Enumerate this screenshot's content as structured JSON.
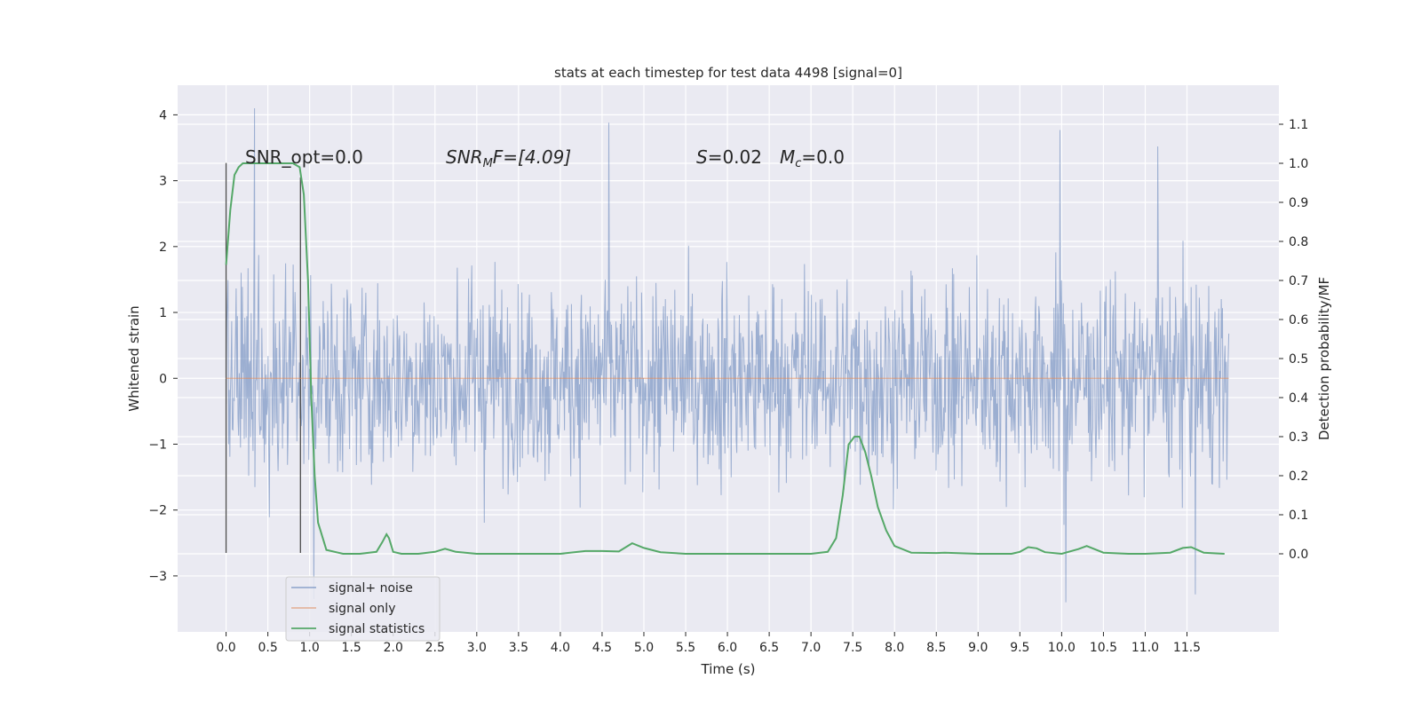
{
  "chart_data": {
    "type": "line",
    "title": "stats at each timestep for test data 4498 [signal=0]",
    "xlabel": "Time (s)",
    "ylabel": "Whitened strain",
    "ylabel_right": "Detection probability/MF",
    "xlim": [
      -0.58,
      12.6
    ],
    "ylim": [
      -3.85,
      4.45
    ],
    "ylim_right": [
      -0.2,
      1.2
    ],
    "x_ticks": [
      "0.0",
      "0.5",
      "1.0",
      "1.5",
      "2.0",
      "2.5",
      "3.0",
      "3.5",
      "4.0",
      "4.5",
      "5.0",
      "5.5",
      "6.0",
      "6.5",
      "7.0",
      "7.5",
      "8.0",
      "8.5",
      "9.0",
      "9.5",
      "10.0",
      "10.5",
      "11.0",
      "11.5"
    ],
    "y_ticks": [
      "4",
      "3",
      "2",
      "1",
      "0",
      "−1",
      "−2",
      "−3"
    ],
    "y_ticks_right": [
      "1.1",
      "1.0",
      "0.9",
      "0.8",
      "0.7",
      "0.6",
      "0.5",
      "0.4",
      "0.3",
      "0.2",
      "0.1",
      "0.0"
    ],
    "grid": true,
    "legend_position": "lower-left",
    "annotations": {
      "snr_opt": "SNR_opt=0.0",
      "snr_mf_label": "SNR",
      "snr_mf_sub": "M",
      "snr_mf_tail": "F=[4.09]",
      "s_label": "S",
      "s_value": "=0.02",
      "mc_label": "M",
      "mc_sub": "c",
      "mc_value": "=0.0"
    },
    "vertical_markers": [
      {
        "x": 0.0,
        "y0": -2.65,
        "y1": 3.27
      },
      {
        "x": 0.89,
        "y0": -2.65,
        "y1": 3.05
      }
    ],
    "series": [
      {
        "name": "signal+ noise",
        "color": "#4c72b0",
        "noise_x_range": [
          0.0,
          12.0
        ],
        "approx_envelope": [
          -3.4,
          4.1
        ],
        "notable_peaks": [
          [
            0.34,
            4.1
          ],
          [
            4.58,
            3.88
          ],
          [
            9.98,
            3.77
          ],
          [
            11.15,
            3.52
          ],
          [
            1.05,
            -3.35
          ],
          [
            10.05,
            -3.4
          ],
          [
            11.6,
            -3.28
          ]
        ]
      },
      {
        "name": "signal only",
        "color": "#dd8452",
        "x": [
          0.0,
          12.0
        ],
        "y": [
          0.0,
          0.0
        ]
      },
      {
        "name": "signal statistics",
        "color": "#55a868",
        "axis": "right",
        "x": [
          0.0,
          0.05,
          0.1,
          0.15,
          0.2,
          0.3,
          0.5,
          0.7,
          0.8,
          0.88,
          0.93,
          0.98,
          1.02,
          1.06,
          1.1,
          1.2,
          1.4,
          1.6,
          1.8,
          1.87,
          1.92,
          1.95,
          2.0,
          2.1,
          2.3,
          2.5,
          2.62,
          2.75,
          3.0,
          3.5,
          4.0,
          4.3,
          4.5,
          4.7,
          4.86,
          5.0,
          5.2,
          5.5,
          6.0,
          6.5,
          7.0,
          7.2,
          7.3,
          7.38,
          7.45,
          7.52,
          7.58,
          7.65,
          7.72,
          7.8,
          7.9,
          8.0,
          8.2,
          8.5,
          8.6,
          9.0,
          9.4,
          9.5,
          9.6,
          9.7,
          9.8,
          10.0,
          10.2,
          10.3,
          10.5,
          10.8,
          11.0,
          11.3,
          11.45,
          11.55,
          11.7,
          11.95
        ],
        "y": [
          0.74,
          0.88,
          0.97,
          0.99,
          1.0,
          1.0,
          1.0,
          1.0,
          1.0,
          0.99,
          0.92,
          0.7,
          0.4,
          0.2,
          0.08,
          0.01,
          0.0,
          0.0,
          0.005,
          0.03,
          0.05,
          0.04,
          0.005,
          0.0,
          0.0,
          0.005,
          0.013,
          0.005,
          0.0,
          0.0,
          0.0,
          0.007,
          0.007,
          0.006,
          0.027,
          0.015,
          0.004,
          0.0,
          0.0,
          0.0,
          0.0,
          0.005,
          0.04,
          0.15,
          0.28,
          0.3,
          0.3,
          0.26,
          0.2,
          0.12,
          0.06,
          0.02,
          0.003,
          0.002,
          0.003,
          0.0,
          0.0,
          0.005,
          0.017,
          0.014,
          0.004,
          0.0,
          0.012,
          0.02,
          0.003,
          0.0,
          0.0,
          0.003,
          0.015,
          0.017,
          0.003,
          0.0
        ]
      }
    ]
  }
}
